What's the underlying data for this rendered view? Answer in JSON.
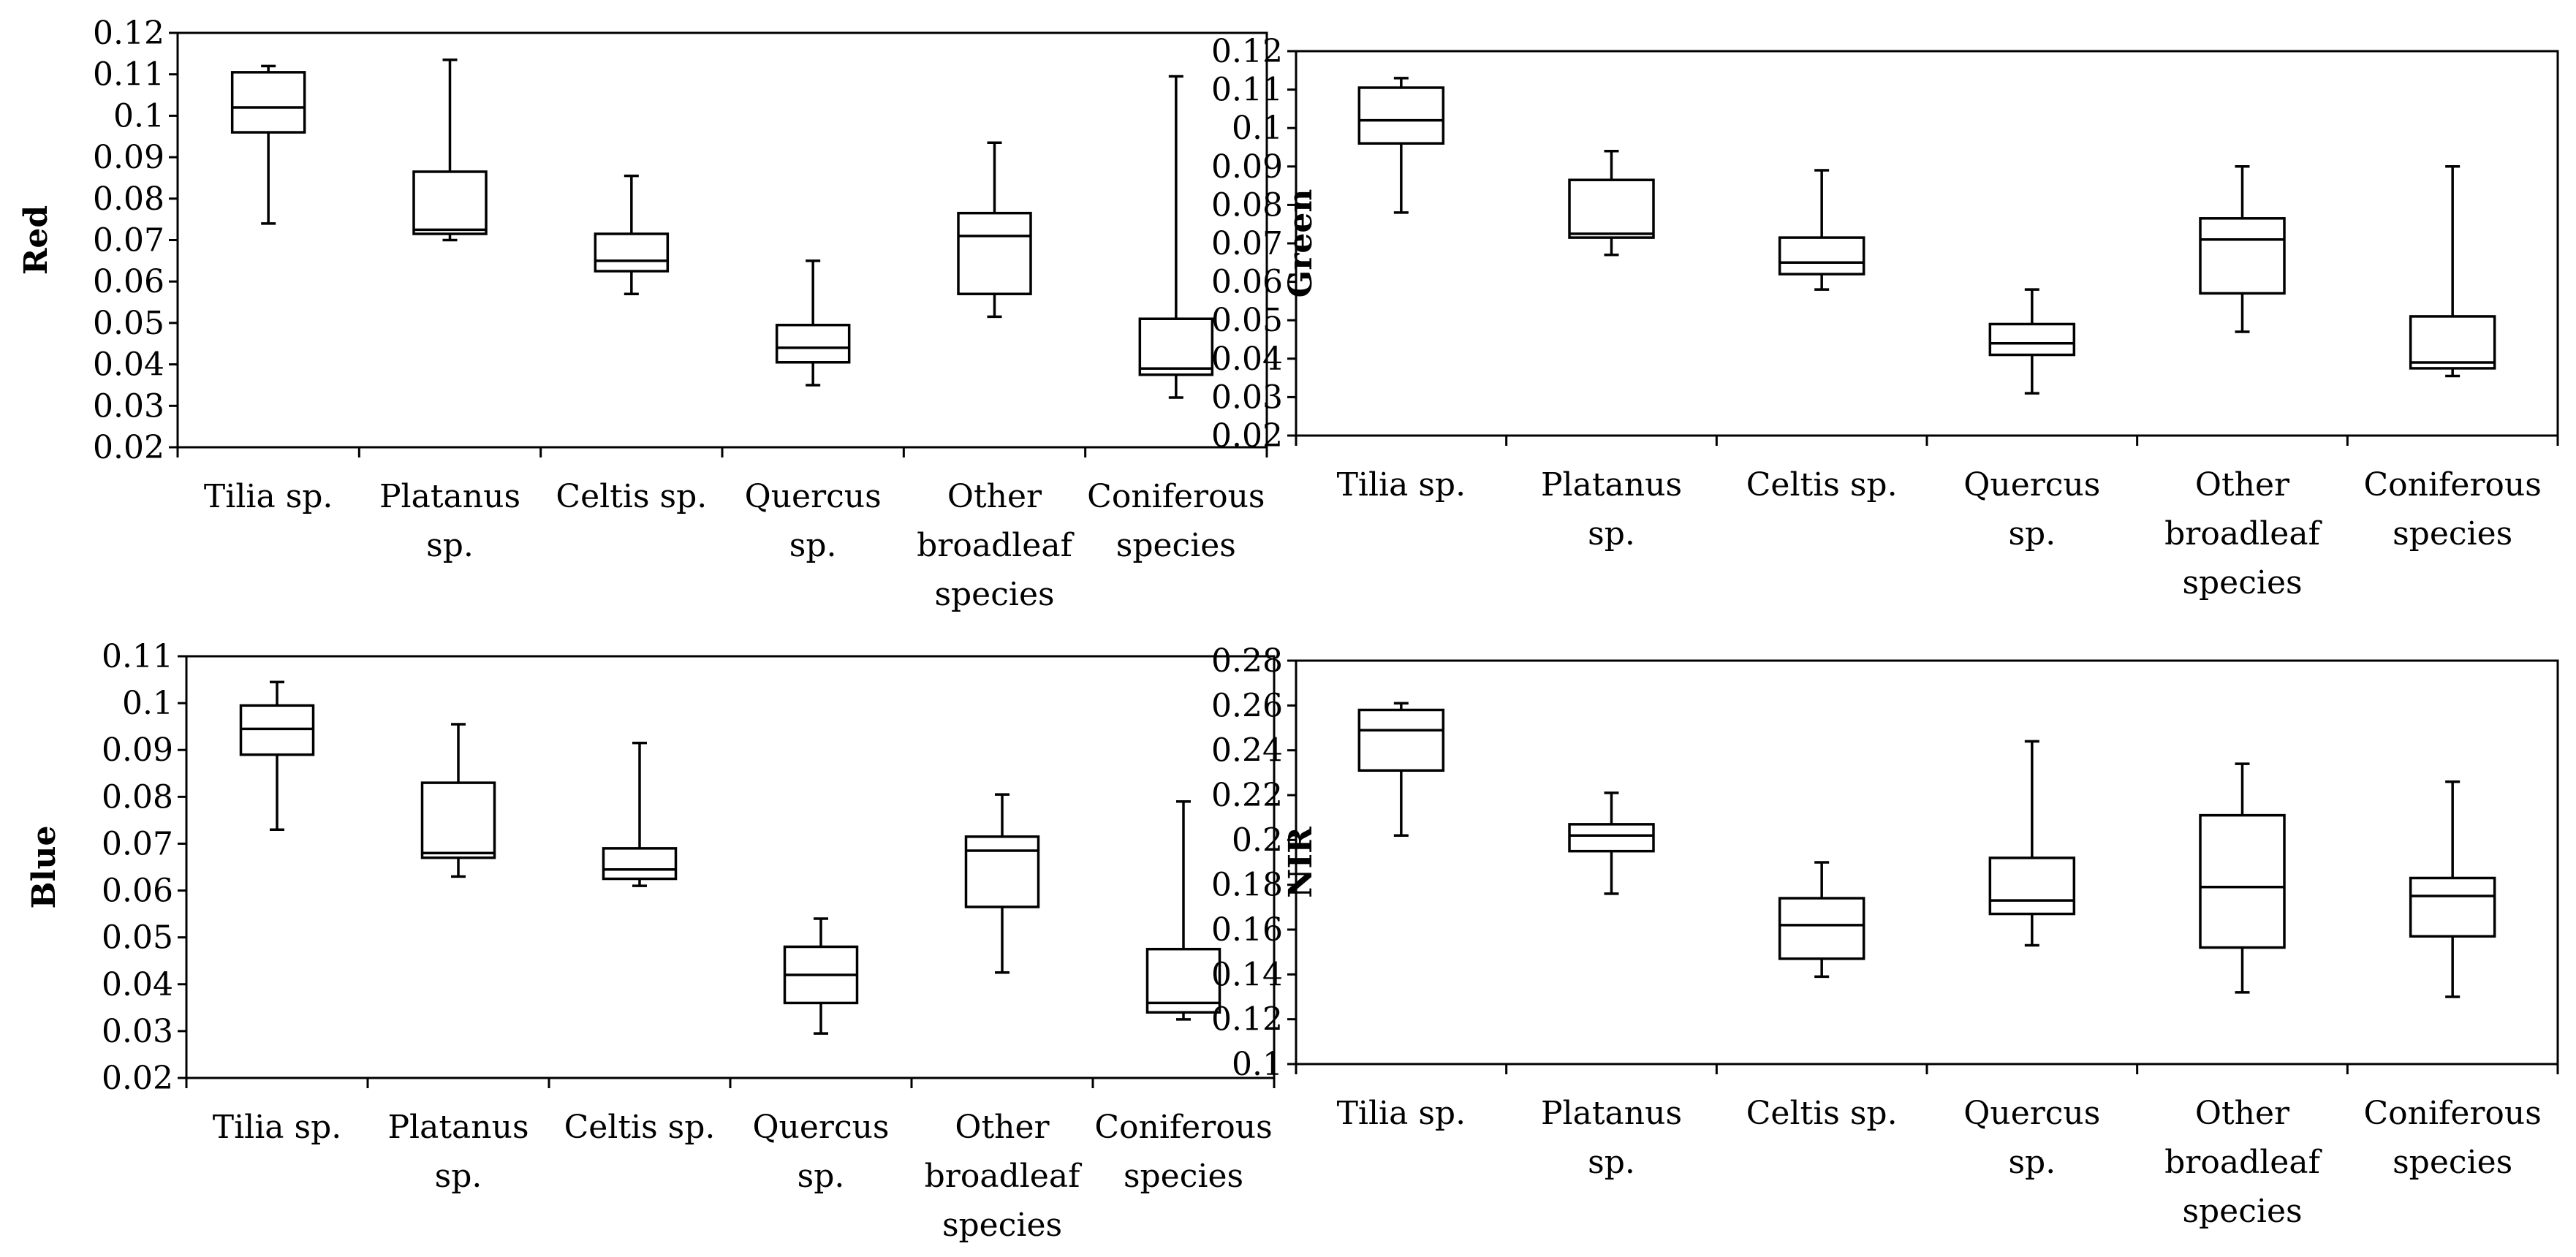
{
  "chart_data": [
    {
      "type": "boxplot",
      "ylabel": "Red",
      "ylim": [
        0.02,
        0.12
      ],
      "yticks": [
        "0.02",
        "0.03",
        "0.04",
        "0.05",
        "0.06",
        "0.07",
        "0.08",
        "0.09",
        "0.1",
        "0.11",
        "0.12"
      ],
      "categories": [
        [
          "Tilia sp."
        ],
        [
          "Platanus",
          "sp."
        ],
        [
          "Celtis sp."
        ],
        [
          "Quercus",
          "sp."
        ],
        [
          "Other",
          "broadleaf",
          "species"
        ],
        [
          "Coniferous",
          "species"
        ]
      ],
      "boxes": [
        {
          "min": 0.074,
          "q1": 0.096,
          "median": 0.102,
          "q3": 0.1105,
          "max": 0.112
        },
        {
          "min": 0.07,
          "q1": 0.0715,
          "median": 0.0725,
          "q3": 0.0865,
          "max": 0.1135
        },
        {
          "min": 0.057,
          "q1": 0.0625,
          "median": 0.065,
          "q3": 0.0715,
          "max": 0.0855
        },
        {
          "min": 0.035,
          "q1": 0.0405,
          "median": 0.044,
          "q3": 0.0495,
          "max": 0.065
        },
        {
          "min": 0.0515,
          "q1": 0.057,
          "median": 0.071,
          "q3": 0.0765,
          "max": 0.0935
        },
        {
          "min": 0.032,
          "q1": 0.0375,
          "median": 0.039,
          "q3": 0.051,
          "max": 0.1095
        }
      ]
    },
    {
      "type": "boxplot",
      "ylabel": "Green",
      "ylim": [
        0.02,
        0.12
      ],
      "yticks": [
        "0.02",
        "0.03",
        "0.04",
        "0.05",
        "0.06",
        "0.07",
        "0.08",
        "0.09",
        "0.1",
        "0.11",
        "0.12"
      ],
      "categories": [
        [
          "Tilia sp."
        ],
        [
          "Platanus",
          "sp."
        ],
        [
          "Celtis sp."
        ],
        [
          "Quercus",
          "sp."
        ],
        [
          "Other",
          "broadleaf",
          "species"
        ],
        [
          "Coniferous",
          "species"
        ]
      ],
      "boxes": [
        {
          "min": 0.078,
          "q1": 0.096,
          "median": 0.102,
          "q3": 0.1105,
          "max": 0.113
        },
        {
          "min": 0.067,
          "q1": 0.0715,
          "median": 0.0725,
          "q3": 0.0865,
          "max": 0.094
        },
        {
          "min": 0.058,
          "q1": 0.062,
          "median": 0.065,
          "q3": 0.0715,
          "max": 0.089
        },
        {
          "min": 0.031,
          "q1": 0.041,
          "median": 0.044,
          "q3": 0.049,
          "max": 0.058
        },
        {
          "min": 0.047,
          "q1": 0.057,
          "median": 0.071,
          "q3": 0.0765,
          "max": 0.09
        },
        {
          "min": 0.0355,
          "q1": 0.0375,
          "median": 0.039,
          "q3": 0.051,
          "max": 0.09
        }
      ]
    },
    {
      "type": "boxplot",
      "ylabel": "Blue",
      "ylim": [
        0.02,
        0.11
      ],
      "yticks": [
        "0.02",
        "0.03",
        "0.04",
        "0.05",
        "0.06",
        "0.07",
        "0.08",
        "0.09",
        "0.1",
        "0.11"
      ],
      "categories": [
        [
          "Tilia sp."
        ],
        [
          "Platanus",
          "sp."
        ],
        [
          "Celtis sp."
        ],
        [
          "Quercus",
          "sp."
        ],
        [
          "Other",
          "broadleaf",
          "species"
        ],
        [
          "Coniferous",
          "species"
        ]
      ],
      "boxes": [
        {
          "min": 0.073,
          "q1": 0.089,
          "median": 0.0945,
          "q3": 0.0995,
          "max": 0.1045
        },
        {
          "min": 0.063,
          "q1": 0.067,
          "median": 0.068,
          "q3": 0.083,
          "max": 0.0955
        },
        {
          "min": 0.061,
          "q1": 0.0625,
          "median": 0.0645,
          "q3": 0.069,
          "max": 0.0915
        },
        {
          "min": 0.0295,
          "q1": 0.036,
          "median": 0.042,
          "q3": 0.048,
          "max": 0.054
        },
        {
          "min": 0.0425,
          "q1": 0.0565,
          "median": 0.0685,
          "q3": 0.0715,
          "max": 0.0805
        },
        {
          "min": 0.0325,
          "q1": 0.034,
          "median": 0.036,
          "q3": 0.0475,
          "max": 0.079
        }
      ]
    },
    {
      "type": "boxplot",
      "ylabel": "NIR",
      "ylim": [
        0.1,
        0.28
      ],
      "yticks": [
        "0.1",
        "0.12",
        "0.14",
        "0.16",
        "0.18",
        "0.2",
        "0.22",
        "0.24",
        "0.26",
        "0.28"
      ],
      "categories": [
        [
          "Tilia sp."
        ],
        [
          "Platanus",
          "sp."
        ],
        [
          "Celtis sp."
        ],
        [
          "Quercus",
          "sp."
        ],
        [
          "Other",
          "broadleaf",
          "species"
        ],
        [
          "Coniferous",
          "species"
        ]
      ],
      "boxes": [
        {
          "min": 0.202,
          "q1": 0.231,
          "median": 0.249,
          "q3": 0.258,
          "max": 0.261
        },
        {
          "min": 0.176,
          "q1": 0.195,
          "median": 0.202,
          "q3": 0.207,
          "max": 0.221
        },
        {
          "min": 0.139,
          "q1": 0.147,
          "median": 0.162,
          "q3": 0.174,
          "max": 0.19
        },
        {
          "min": 0.153,
          "q1": 0.167,
          "median": 0.173,
          "q3": 0.192,
          "max": 0.244
        },
        {
          "min": 0.132,
          "q1": 0.152,
          "median": 0.179,
          "q3": 0.211,
          "max": 0.234
        },
        {
          "min": 0.13,
          "q1": 0.157,
          "median": 0.175,
          "q3": 0.183,
          "max": 0.226
        }
      ]
    }
  ]
}
